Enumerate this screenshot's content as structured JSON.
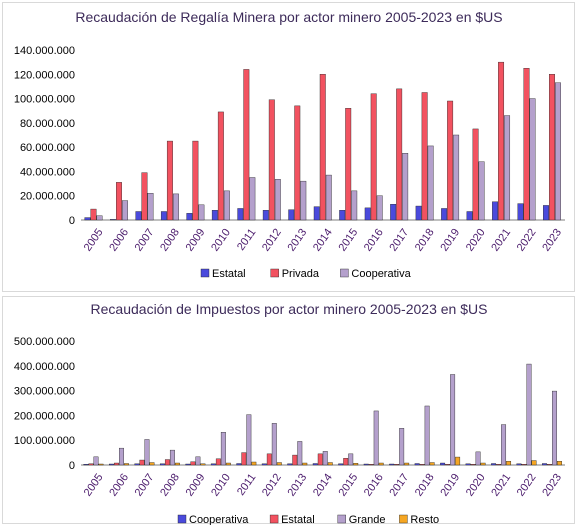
{
  "chart_data": [
    {
      "type": "bar",
      "title": "Recaudación de Regalía Minera por actor minero 2005-2023 en $US",
      "xlabel": "",
      "ylabel": "",
      "ylim": [
        0,
        140000000
      ],
      "yticks": [
        "0",
        "20.000.000",
        "40.000.000",
        "60.000.000",
        "80.000.000",
        "100.000.000",
        "120.000.000",
        "140.000.000"
      ],
      "grid": false,
      "legend": "bottom",
      "categories": [
        "2005",
        "2006",
        "2007",
        "2008",
        "2009",
        "2010",
        "2011",
        "2012",
        "2013",
        "2014",
        "2015",
        "2016",
        "2017",
        "2018",
        "2019",
        "2020",
        "2021",
        "2022",
        "2023"
      ],
      "series": [
        {
          "name": "Estatal",
          "color": "#4a4adc",
          "values": [
            2000000,
            500000,
            7000000,
            7000000,
            5500000,
            8000000,
            9500000,
            8000000,
            8500000,
            11000000,
            8000000,
            10000000,
            13000000,
            11500000,
            9500000,
            7000000,
            15000000,
            13500000,
            12000000
          ]
        },
        {
          "name": "Privada",
          "color": "#f25260",
          "values": [
            9000000,
            31000000,
            39000000,
            65000000,
            65000000,
            89000000,
            124000000,
            99000000,
            94000000,
            120000000,
            92000000,
            104000000,
            108000000,
            105000000,
            98000000,
            75000000,
            130000000,
            125000000,
            120000000
          ]
        },
        {
          "name": "Cooperativa",
          "color": "#b4a0cc",
          "values": [
            3500000,
            16000000,
            22000000,
            21500000,
            12500000,
            24000000,
            35000000,
            33500000,
            32000000,
            37000000,
            24000000,
            20000000,
            55000000,
            61000000,
            70000000,
            48000000,
            86000000,
            100000000,
            113000000
          ]
        }
      ]
    },
    {
      "type": "bar",
      "title": "Recaudación de Impuestos por actor minero 2005-2023 en $US",
      "xlabel": "",
      "ylabel": "",
      "ylim": [
        0,
        500000000
      ],
      "yticks": [
        "0",
        "100.000.000",
        "200.000.000",
        "300.000.000",
        "400.000.000",
        "500.000.000"
      ],
      "grid": false,
      "legend": "bottom",
      "categories": [
        "2005",
        "2006",
        "2007",
        "2008",
        "2009",
        "2010",
        "2011",
        "2012",
        "2013",
        "2014",
        "2015",
        "2016",
        "2017",
        "2018",
        "2019",
        "2020",
        "2021",
        "2022",
        "2023"
      ],
      "series": [
        {
          "name": "Cooperativa",
          "color": "#4a4adc",
          "values": [
            3000000,
            4000000,
            5000000,
            5000000,
            4000000,
            5000000,
            6000000,
            5000000,
            5000000,
            6000000,
            5000000,
            4000000,
            4000000,
            6000000,
            8000000,
            5000000,
            6000000,
            5000000,
            6000000
          ]
        },
        {
          "name": "Estatal",
          "color": "#f25260",
          "values": [
            5000000,
            8000000,
            20000000,
            22000000,
            13000000,
            25000000,
            50000000,
            45000000,
            40000000,
            45000000,
            27000000,
            3000000,
            3000000,
            3000000,
            3000000,
            3000000,
            3000000,
            3000000,
            3000000
          ]
        },
        {
          "name": "Grande",
          "color": "#b4a0cc",
          "values": [
            33000000,
            68000000,
            103000000,
            60000000,
            33000000,
            132000000,
            203000000,
            168000000,
            95000000,
            55000000,
            45000000,
            218000000,
            148000000,
            238000000,
            365000000,
            53000000,
            163000000,
            407000000,
            298000000
          ]
        },
        {
          "name": "Resto",
          "color": "#f5a623",
          "values": [
            4000000,
            6000000,
            10000000,
            8000000,
            5000000,
            8000000,
            12000000,
            10000000,
            8000000,
            10000000,
            7000000,
            8000000,
            8000000,
            10000000,
            32000000,
            8000000,
            15000000,
            18000000,
            15000000
          ]
        }
      ]
    }
  ]
}
